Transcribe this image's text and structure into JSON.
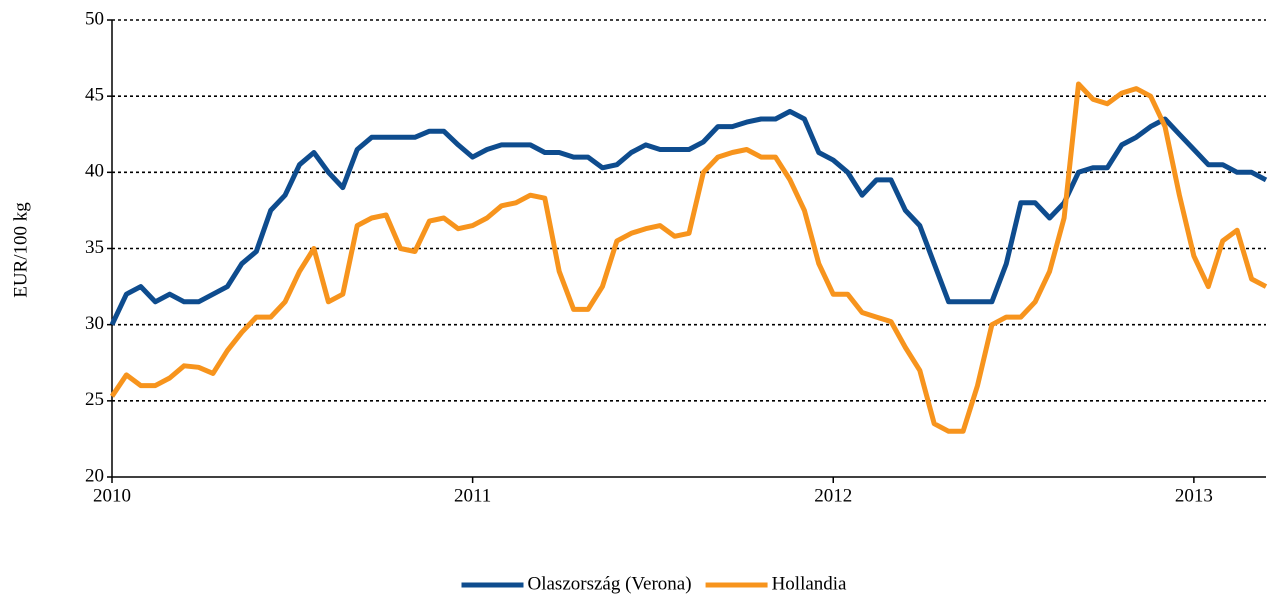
{
  "chart_data": {
    "type": "line",
    "ylabel": "EUR/100 kg",
    "x": [
      2010,
      2010.04,
      2010.08,
      2010.12,
      2010.16,
      2010.2,
      2010.24,
      2010.28,
      2010.32,
      2010.36,
      2010.4,
      2010.44,
      2010.48,
      2010.52,
      2010.56,
      2010.6,
      2010.64,
      2010.68,
      2010.72,
      2010.76,
      2010.8,
      2010.84,
      2010.88,
      2010.92,
      2010.96,
      2011,
      2011.04,
      2011.08,
      2011.12,
      2011.16,
      2011.2,
      2011.24,
      2011.28,
      2011.32,
      2011.36,
      2011.4,
      2011.44,
      2011.48,
      2011.52,
      2011.56,
      2011.6,
      2011.64,
      2011.68,
      2011.72,
      2011.76,
      2011.8,
      2011.84,
      2011.88,
      2011.92,
      2011.96,
      2012,
      2012.04,
      2012.08,
      2012.12,
      2012.16,
      2012.2,
      2012.24,
      2012.28,
      2012.32,
      2012.36,
      2012.4,
      2012.44,
      2012.48,
      2012.52,
      2012.56,
      2012.6,
      2012.64,
      2012.68,
      2012.72,
      2012.76,
      2012.8,
      2012.84,
      2012.88,
      2012.92,
      2012.96,
      2013,
      2013.04,
      2013.08,
      2013.12,
      2013.16,
      2013.2
    ],
    "series": [
      {
        "name": "Olaszország (Verona)",
        "color": "#0e4c8e",
        "values": [
          30,
          32,
          32.5,
          31.5,
          32,
          31.5,
          31.5,
          32,
          32.5,
          34,
          34.8,
          37.5,
          38.5,
          40.5,
          41.3,
          40,
          39,
          41.5,
          42.3,
          42.3,
          42.3,
          42.3,
          42.7,
          42.7,
          41.8,
          41,
          41.5,
          41.8,
          41.8,
          41.8,
          41.3,
          41.3,
          41,
          41,
          40.3,
          40.5,
          41.3,
          41.8,
          41.5,
          41.5,
          41.5,
          42,
          43,
          43,
          43.3,
          43.5,
          43.5,
          44,
          43.5,
          41.3,
          40.8,
          40,
          38.5,
          39.5,
          39.5,
          37.5,
          36.5,
          34,
          31.5,
          31.5,
          31.5,
          31.5,
          34,
          38,
          38,
          37,
          38,
          40,
          40.3,
          40.3,
          41.8,
          42.3,
          43,
          43.5,
          42.5,
          41.5,
          40.5,
          40.5,
          40,
          40,
          39.5
        ]
      },
      {
        "name": "Hollandia",
        "color": "#f7941d",
        "values": [
          25.3,
          26.7,
          26,
          26,
          26.5,
          27.3,
          27.2,
          26.8,
          28.3,
          29.5,
          30.5,
          30.5,
          31.5,
          33.5,
          35,
          31.5,
          32,
          36.5,
          37,
          37.2,
          35,
          34.8,
          36.8,
          37,
          36.3,
          36.5,
          37,
          37.8,
          38,
          38.5,
          38.3,
          33.5,
          31,
          31,
          32.5,
          35.5,
          36,
          36.3,
          36.5,
          35.8,
          36,
          40,
          41,
          41.3,
          41.5,
          41,
          41,
          39.5,
          37.5,
          34,
          32,
          32,
          30.8,
          30.5,
          30.2,
          28.5,
          27,
          23.5,
          23,
          23,
          26,
          30,
          30.5,
          30.5,
          31.5,
          33.5,
          37,
          45.8,
          44.8,
          44.5,
          45.2,
          45.5,
          45,
          43,
          38.5,
          34.5,
          32.5,
          35.5,
          36.2,
          33,
          32.5
        ]
      }
    ],
    "xlim": [
      2010,
      2013.2
    ],
    "xticks": [
      2010,
      2011,
      2012,
      2013
    ],
    "ylim": [
      20,
      50
    ],
    "yticks": [
      20,
      25,
      30,
      35,
      40,
      45,
      50
    ],
    "grid": true,
    "legend": "bottom"
  }
}
